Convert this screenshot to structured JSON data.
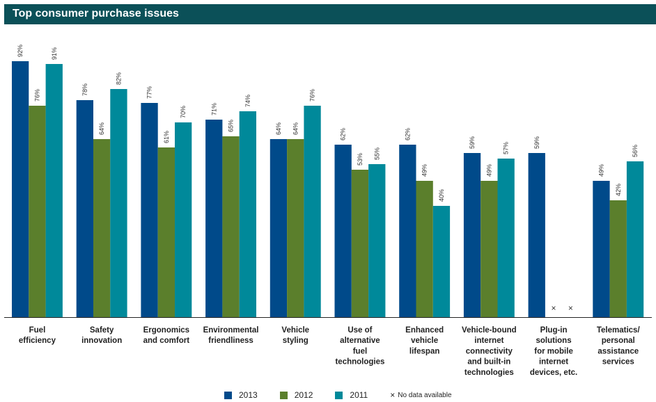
{
  "chart_data": {
    "type": "bar",
    "title": "Top consumer purchase issues",
    "ylim": [
      0,
      100
    ],
    "grid": false,
    "legend_position": "bottom",
    "categories": [
      [
        "Fuel",
        "efficiency"
      ],
      [
        "Safety",
        "innovation"
      ],
      [
        "Ergonomics",
        "and comfort"
      ],
      [
        "Environmental",
        "friendliness"
      ],
      [
        "Vehicle",
        "styling"
      ],
      [
        "Use of",
        "alternative",
        "fuel",
        "technologies"
      ],
      [
        "Enhanced",
        "vehicle",
        "lifespan"
      ],
      [
        "Vehicle-bound",
        "internet",
        "connectivity",
        "and built-in",
        "technologies"
      ],
      [
        "Plug-in",
        "solutions",
        "for mobile",
        "internet",
        "devices, etc."
      ],
      [
        "Telematics/",
        "personal",
        "assistance",
        "services"
      ]
    ],
    "series": [
      {
        "name": "2013",
        "color": "#004a8a",
        "values": [
          92,
          78,
          77,
          71,
          64,
          62,
          62,
          59,
          59,
          49
        ]
      },
      {
        "name": "2012",
        "color": "#5b7f2c",
        "values": [
          76,
          64,
          61,
          65,
          64,
          53,
          49,
          49,
          null,
          42
        ]
      },
      {
        "name": "2011",
        "color": "#00899a",
        "values": [
          91,
          82,
          70,
          74,
          76,
          55,
          40,
          57,
          null,
          56
        ]
      }
    ],
    "missing_marker": "×",
    "missing_note": "No data available"
  }
}
